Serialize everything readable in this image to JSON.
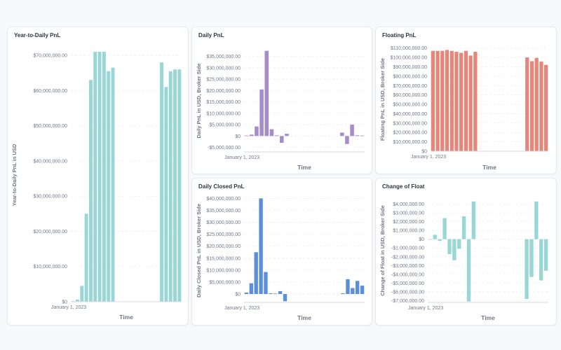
{
  "colors": {
    "background": "#f8f9fb",
    "card": "#ffffff",
    "teal": "#98d7d6",
    "purple": "#a78ccc",
    "salmon": "#e48679",
    "blue": "#5b8fd8",
    "gridline": "#eceef2",
    "axis_text": "#6f7786"
  },
  "chart_data": [
    {
      "id": "ytd",
      "type": "bar",
      "title": "Year-to-Daily PnL",
      "xlabel": "Time",
      "ylabel": "Year-to-Daily PnL in USD",
      "x_tick_label": "January 1, 2023",
      "ylim": [
        0,
        72000000
      ],
      "yticks": [
        0,
        10000000,
        20000000,
        30000000,
        40000000,
        50000000,
        60000000,
        70000000
      ],
      "ytick_labels": [
        "$0",
        "$10,000,000.00",
        "$20,000,000.00",
        "$30,000,000.00",
        "$40,000,000.00",
        "$50,000,000.00",
        "$60,000,000.00",
        "$70,000,000.00"
      ],
      "color": "#98d7d6",
      "values": [
        200000,
        600000,
        4500000,
        25000000,
        63000000,
        71000000,
        71000000,
        71000000,
        65500000,
        66500000,
        null,
        null,
        null,
        null,
        null,
        null,
        null,
        null,
        null,
        null,
        68000000,
        61000000,
        65500000,
        66000000,
        66000000
      ]
    },
    {
      "id": "daily",
      "type": "bar",
      "title": "Daily PnL",
      "xlabel": "Time",
      "ylabel": "Daily PnL in USD, Broker Side",
      "x_tick_label": "January 1, 2023",
      "ylim": [
        -7000000,
        38000000
      ],
      "yticks": [
        -5000000,
        0,
        5000000,
        10000000,
        15000000,
        20000000,
        25000000,
        30000000,
        35000000
      ],
      "ytick_labels": [
        "-$5,000,000.00",
        "$0",
        "$5,000,000.00",
        "$10,000,000.00",
        "$15,000,000.00",
        "$20,000,000.00",
        "$25,000,000.00",
        "$30,000,000.00",
        "$35,000,000.00"
      ],
      "color": "#a78ccc",
      "values": [
        200000,
        600000,
        4200000,
        20500000,
        37500000,
        3000000,
        300000,
        -3000000,
        1000000,
        null,
        null,
        null,
        null,
        null,
        null,
        null,
        null,
        null,
        null,
        1500000,
        -3500000,
        5000000,
        300000,
        200000
      ]
    },
    {
      "id": "floating",
      "type": "bar",
      "title": "Floating PnL",
      "xlabel": "Time",
      "ylabel": "Floating PnL in USD, Broker Side",
      "x_tick_label": "January 1, 2023",
      "ylim": [
        0,
        112000000
      ],
      "yticks": [
        0,
        10000000,
        20000000,
        30000000,
        40000000,
        50000000,
        60000000,
        70000000,
        80000000,
        90000000,
        100000000,
        110000000
      ],
      "ytick_labels": [
        "$0",
        "$10,000,000.00",
        "$20,000,000.00",
        "$30,000,000.00",
        "$40,000,000.00",
        "$50,000,000.00",
        "$60,000,000.00",
        "$70,000,000.00",
        "$80,000,000.00",
        "$90,000,000.00",
        "$100,000,000.00",
        "$110,000,000.00"
      ],
      "color": "#e48679",
      "values": [
        107000000,
        107000000,
        107000000,
        108000000,
        107000000,
        106000000,
        105000000,
        107000000,
        102000000,
        106000000,
        null,
        null,
        null,
        null,
        null,
        null,
        null,
        null,
        null,
        null,
        100000000,
        96000000,
        99500000,
        95500000,
        92000000
      ]
    },
    {
      "id": "closed",
      "type": "bar",
      "title": "Daily Closed PnL",
      "xlabel": "Time",
      "ylabel": "Daily Closed PnL in USD, Broker Side",
      "x_tick_label": "January 1, 2023",
      "ylim": [
        -3500000,
        41000000
      ],
      "yticks": [
        0,
        5000000,
        10000000,
        15000000,
        20000000,
        25000000,
        30000000,
        35000000,
        40000000
      ],
      "ytick_labels": [
        "$0",
        "$5,000,000.00",
        "$10,000,000.00",
        "$15,000,000.00",
        "$20,000,000.00",
        "$25,000,000.00",
        "$30,000,000.00",
        "$35,000,000.00",
        "$40,000,000.00"
      ],
      "color": "#5b8fd8",
      "values": [
        600000,
        4500000,
        17500000,
        40000000,
        9200000,
        300000,
        200000,
        1200000,
        -3000000,
        null,
        null,
        null,
        null,
        null,
        null,
        null,
        null,
        null,
        null,
        null,
        300000,
        6200000,
        2500000,
        5500000,
        3500000
      ]
    },
    {
      "id": "float_change",
      "type": "bar",
      "title": "Change of Float",
      "xlabel": "Time",
      "ylabel": "Change of Float in USD, Broker Side",
      "x_tick_label": "January 1, 2023",
      "ylim": [
        -7200000,
        4600000
      ],
      "yticks": [
        -7000000,
        -6000000,
        -5000000,
        -4000000,
        -3000000,
        -2000000,
        -1000000,
        0,
        1000000,
        2000000,
        3000000,
        4000000
      ],
      "ytick_labels": [
        "-$7,000,000.00",
        "-$6,000,000.00",
        "-$5,000,000.00",
        "-$4,000,000.00",
        "-$3,000,000.00",
        "-$2,000,000.00",
        "-$1,000,000.00",
        "$0",
        "$1,000,000.00",
        "$2,000,000.00",
        "$3,000,000.00",
        "$4,000,000.00"
      ],
      "color": "#98d7d6",
      "values": [
        0,
        500000,
        -200000,
        2400000,
        -1700000,
        -2400000,
        -1100000,
        2600000,
        -7100000,
        4300000,
        null,
        null,
        null,
        null,
        null,
        null,
        null,
        null,
        null,
        null,
        -6800000,
        -4300000,
        4300000,
        -4700000,
        -3600000
      ]
    }
  ]
}
